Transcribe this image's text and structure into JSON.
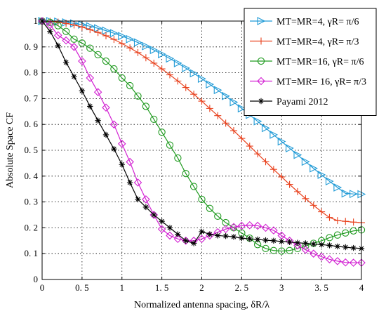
{
  "chart_data": {
    "type": "line",
    "xlabel": "Normalized antenna spacing, δR/λ",
    "ylabel": "Absolute Space CF",
    "xlim": [
      0,
      4
    ],
    "ylim": [
      0,
      1
    ],
    "xticks": [
      "0",
      "0. 5",
      "1",
      "1. 5",
      "2",
      "2. 5",
      "3",
      "3. 5",
      "4"
    ],
    "yticks": [
      "0",
      "0. 1",
      "0. 2",
      "0. 3",
      "0. 4",
      "0. 5",
      "0. 6",
      "0. 7",
      "0. 8",
      "0. 9",
      "1"
    ],
    "grid": true,
    "legend_position": "top-right",
    "series": [
      {
        "name": "MT=MR=4,  γR= π/6",
        "color": "#1f9ad6",
        "marker": "triangle-right",
        "x": [
          0,
          0.1,
          0.2,
          0.3,
          0.4,
          0.5,
          0.6,
          0.7,
          0.8,
          0.9,
          1.0,
          1.1,
          1.2,
          1.3,
          1.4,
          1.5,
          1.6,
          1.7,
          1.8,
          1.9,
          2.0,
          2.1,
          2.2,
          2.3,
          2.4,
          2.5,
          2.6,
          2.7,
          2.8,
          2.9,
          3.0,
          3.1,
          3.2,
          3.3,
          3.4,
          3.5,
          3.6,
          3.7,
          3.8,
          3.9,
          4.0
        ],
        "y": [
          1.0,
          1.0,
          0.998,
          0.995,
          0.991,
          0.986,
          0.98,
          0.972,
          0.963,
          0.953,
          0.942,
          0.93,
          0.917,
          0.903,
          0.888,
          0.872,
          0.855,
          0.837,
          0.818,
          0.798,
          0.777,
          0.755,
          0.733,
          0.71,
          0.686,
          0.662,
          0.637,
          0.612,
          0.586,
          0.56,
          0.534,
          0.508,
          0.482,
          0.456,
          0.43,
          0.405,
          0.38,
          0.356,
          0.333,
          0.331,
          0.33
        ]
      },
      {
        "name": "MT=MR=4,  γR= π/3",
        "color": "#e8401c",
        "marker": "plus",
        "x": [
          0,
          0.1,
          0.2,
          0.3,
          0.4,
          0.5,
          0.6,
          0.7,
          0.8,
          0.9,
          1.0,
          1.1,
          1.2,
          1.3,
          1.4,
          1.5,
          1.6,
          1.7,
          1.8,
          1.9,
          2.0,
          2.1,
          2.2,
          2.3,
          2.4,
          2.5,
          2.6,
          2.7,
          2.8,
          2.9,
          3.0,
          3.1,
          3.2,
          3.3,
          3.4,
          3.5,
          3.6,
          3.7,
          3.8,
          3.9,
          4.0
        ],
        "y": [
          1.0,
          0.999,
          0.996,
          0.991,
          0.985,
          0.977,
          0.967,
          0.956,
          0.943,
          0.929,
          0.913,
          0.896,
          0.878,
          0.858,
          0.837,
          0.815,
          0.792,
          0.768,
          0.743,
          0.717,
          0.69,
          0.662,
          0.634,
          0.605,
          0.576,
          0.546,
          0.516,
          0.486,
          0.456,
          0.426,
          0.397,
          0.368,
          0.34,
          0.313,
          0.287,
          0.262,
          0.24,
          0.228,
          0.225,
          0.222,
          0.22
        ]
      },
      {
        "name": "MT=MR=16,   γR= π/6",
        "color": "#1f9a1f",
        "marker": "circle",
        "x": [
          0,
          0.1,
          0.2,
          0.3,
          0.4,
          0.5,
          0.6,
          0.7,
          0.8,
          0.9,
          1.0,
          1.1,
          1.2,
          1.3,
          1.4,
          1.5,
          1.6,
          1.7,
          1.8,
          1.9,
          2.0,
          2.1,
          2.2,
          2.3,
          2.4,
          2.5,
          2.6,
          2.7,
          2.8,
          2.9,
          3.0,
          3.1,
          3.2,
          3.3,
          3.4,
          3.5,
          3.6,
          3.7,
          3.8,
          3.9,
          4.0
        ],
        "y": [
          1.0,
          0.995,
          0.982,
          0.96,
          0.93,
          0.915,
          0.895,
          0.87,
          0.845,
          0.815,
          0.78,
          0.75,
          0.71,
          0.67,
          0.62,
          0.57,
          0.52,
          0.47,
          0.41,
          0.36,
          0.31,
          0.275,
          0.245,
          0.22,
          0.2,
          0.18,
          0.16,
          0.135,
          0.12,
          0.112,
          0.11,
          0.112,
          0.12,
          0.13,
          0.14,
          0.15,
          0.162,
          0.172,
          0.18,
          0.188,
          0.192
        ]
      },
      {
        "name": "MT=MR= 16,   γR= π/3",
        "color": "#d21fd2",
        "marker": "diamond",
        "x": [
          0,
          0.1,
          0.2,
          0.3,
          0.4,
          0.5,
          0.6,
          0.7,
          0.8,
          0.9,
          1.0,
          1.1,
          1.2,
          1.3,
          1.4,
          1.5,
          1.6,
          1.7,
          1.8,
          1.9,
          2.0,
          2.1,
          2.2,
          2.3,
          2.4,
          2.5,
          2.6,
          2.7,
          2.8,
          2.9,
          3.0,
          3.1,
          3.2,
          3.3,
          3.4,
          3.5,
          3.6,
          3.7,
          3.8,
          3.9,
          4.0
        ],
        "y": [
          1.0,
          0.985,
          0.945,
          0.925,
          0.9,
          0.845,
          0.78,
          0.725,
          0.665,
          0.6,
          0.525,
          0.455,
          0.375,
          0.31,
          0.25,
          0.195,
          0.17,
          0.157,
          0.15,
          0.15,
          0.157,
          0.17,
          0.183,
          0.195,
          0.203,
          0.208,
          0.21,
          0.208,
          0.2,
          0.19,
          0.17,
          0.15,
          0.132,
          0.115,
          0.1,
          0.088,
          0.078,
          0.071,
          0.066,
          0.065,
          0.065
        ]
      },
      {
        "name": "Payami 2012",
        "color": "#000000",
        "marker": "asterisk",
        "x": [
          0,
          0.1,
          0.2,
          0.3,
          0.4,
          0.5,
          0.6,
          0.7,
          0.8,
          0.9,
          1.0,
          1.1,
          1.2,
          1.3,
          1.4,
          1.5,
          1.6,
          1.7,
          1.8,
          1.9,
          2.0,
          2.1,
          2.2,
          2.3,
          2.4,
          2.5,
          2.6,
          2.7,
          2.8,
          2.9,
          3.0,
          3.1,
          3.2,
          3.3,
          3.4,
          3.5,
          3.6,
          3.7,
          3.8,
          3.9,
          4.0
        ],
        "y": [
          1.0,
          0.96,
          0.905,
          0.84,
          0.785,
          0.73,
          0.67,
          0.615,
          0.56,
          0.505,
          0.445,
          0.375,
          0.31,
          0.28,
          0.25,
          0.225,
          0.2,
          0.175,
          0.15,
          0.14,
          0.185,
          0.175,
          0.17,
          0.168,
          0.165,
          0.16,
          0.157,
          0.155,
          0.152,
          0.15,
          0.147,
          0.145,
          0.142,
          0.14,
          0.137,
          0.135,
          0.132,
          0.128,
          0.125,
          0.122,
          0.12
        ]
      }
    ]
  }
}
